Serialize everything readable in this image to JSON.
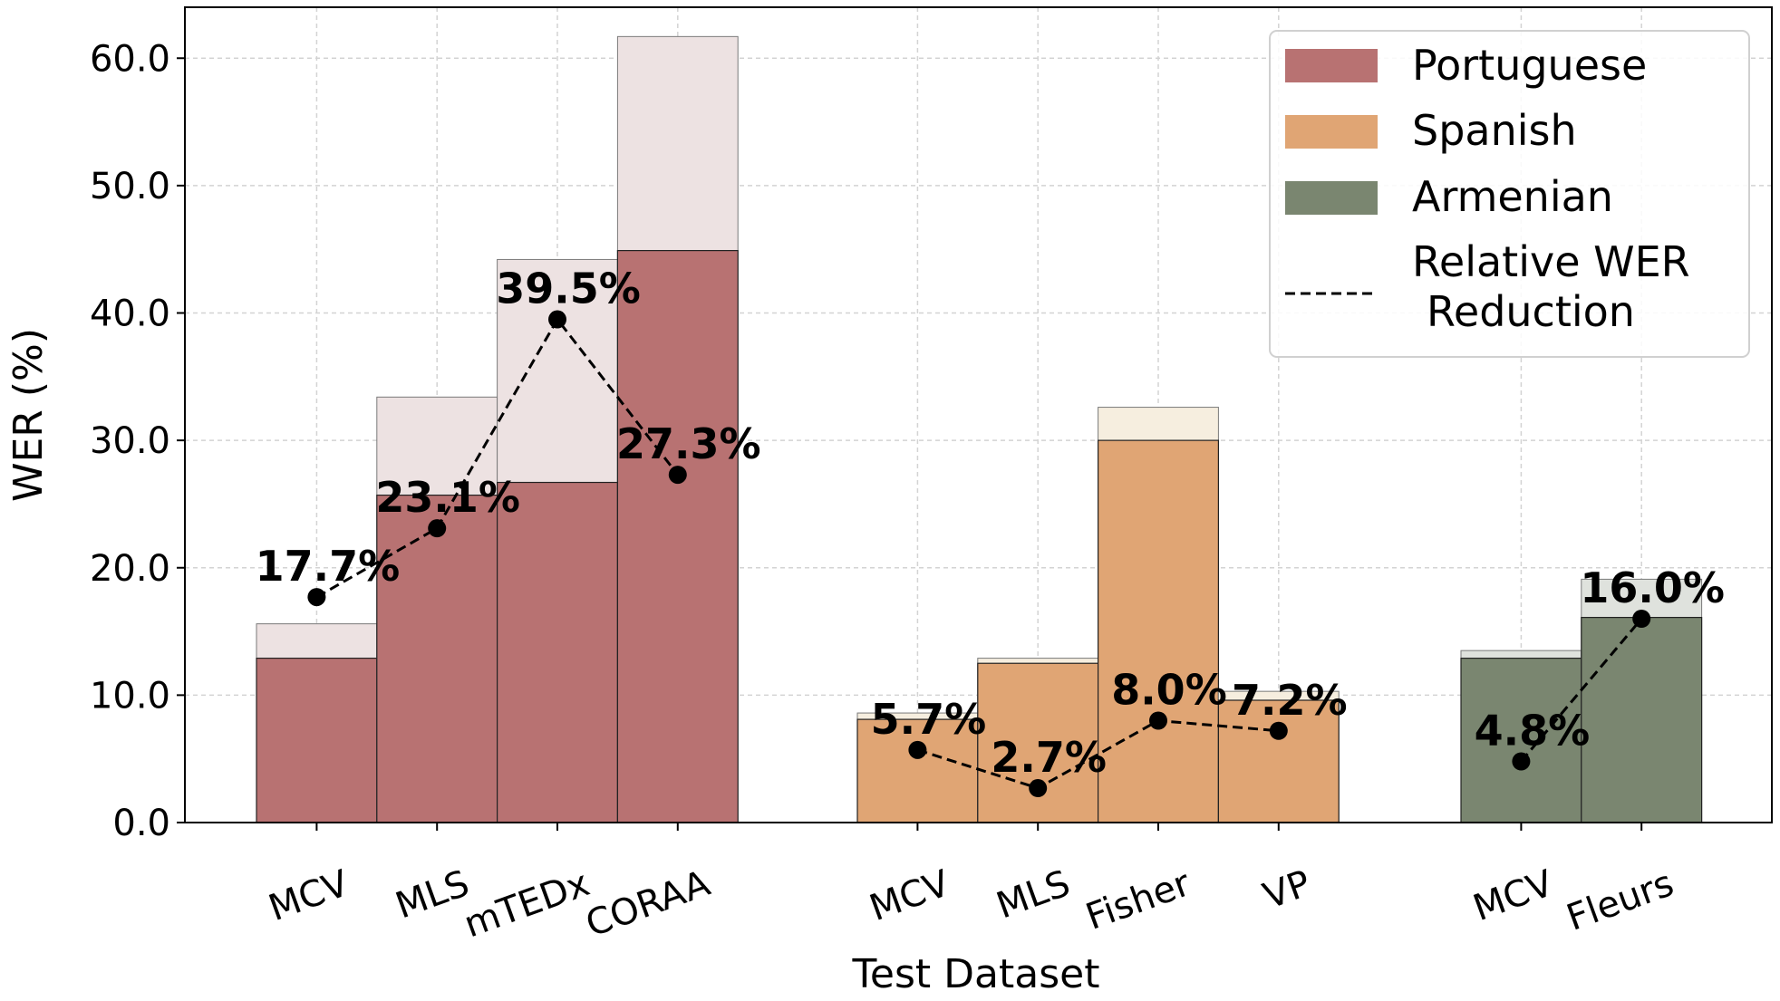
{
  "chart_data": {
    "type": "bar",
    "title": "",
    "xlabel": "Test Dataset",
    "ylabel": "WER (%)",
    "ylim": [
      0,
      64
    ],
    "yticks": [
      "0.0",
      "10.0",
      "20.0",
      "30.0",
      "40.0",
      "50.0",
      "60.0"
    ],
    "grid": true,
    "legend_position": "top-right",
    "legend": {
      "portuguese": "Portuguese",
      "spanish": "Spanish",
      "armenian": "Armenian",
      "line_line1": "Relative WER",
      "line_line2": "Reduction"
    },
    "groups": [
      {
        "name": "Portuguese",
        "color": "#b87272",
        "light_color": "#ede2e2",
        "categories": [
          "MCV",
          "MLS",
          "mTEDx",
          "CORAA"
        ],
        "baseline_wer": [
          15.6,
          33.4,
          44.2,
          61.7
        ],
        "improved_wer": [
          12.9,
          25.7,
          26.7,
          44.9
        ],
        "relative_reduction": [
          17.7,
          23.1,
          39.5,
          27.3
        ],
        "reduction_labels": [
          "17.7%",
          "23.1%",
          "39.5%",
          "27.3%"
        ]
      },
      {
        "name": "Spanish",
        "color": "#e0a574",
        "light_color": "#f6eedf",
        "categories": [
          "MCV",
          "MLS",
          "Fisher",
          "VP"
        ],
        "baseline_wer": [
          8.6,
          12.9,
          32.6,
          10.3
        ],
        "improved_wer": [
          8.1,
          12.5,
          30.0,
          9.6
        ],
        "relative_reduction": [
          5.7,
          2.7,
          8.0,
          7.2
        ],
        "reduction_labels": [
          "5.7%",
          "2.7%",
          "8.0%",
          "7.2%"
        ]
      },
      {
        "name": "Armenian",
        "color": "#7a8670",
        "light_color": "#dfe2dd",
        "categories": [
          "MCV",
          "Fleurs"
        ],
        "baseline_wer": [
          13.5,
          19.1
        ],
        "improved_wer": [
          12.9,
          16.1
        ],
        "relative_reduction": [
          4.8,
          16.0
        ],
        "reduction_labels": [
          "4.8%",
          "16.0%"
        ]
      }
    ]
  }
}
